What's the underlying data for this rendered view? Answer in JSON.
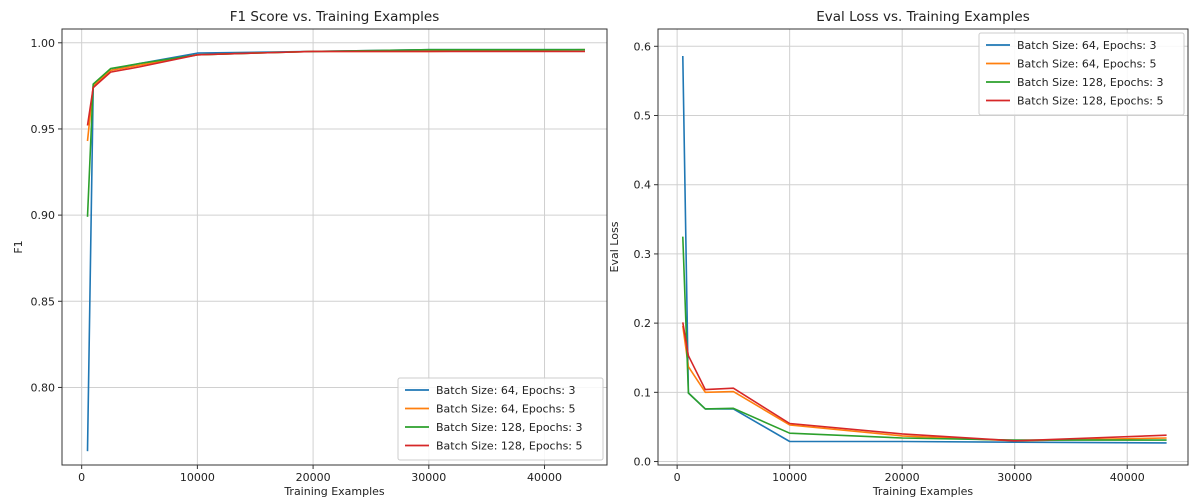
{
  "chart_data": [
    {
      "type": "line",
      "title": "F1 Score vs. Training Examples",
      "xlabel": "Training Examples",
      "ylabel": "F1",
      "xlim": [
        -1700,
        45400
      ],
      "ylim": [
        0.755,
        1.008
      ],
      "xticks": [
        0,
        10000,
        20000,
        30000,
        40000
      ],
      "yticks": [
        0.8,
        0.85,
        0.9,
        0.95,
        1.0
      ],
      "ytick_decimals": 2,
      "grid": true,
      "legend_position": "lower-right",
      "x": [
        500,
        1000,
        2500,
        5000,
        10000,
        20000,
        30000,
        43500
      ],
      "series": [
        {
          "name": "Batch Size: 64, Epochs: 3",
          "color": "#1f77b4",
          "values": [
            0.763,
            0.974,
            0.984,
            0.988,
            0.994,
            0.995,
            0.996,
            0.996
          ]
        },
        {
          "name": "Batch Size: 64, Epochs: 5",
          "color": "#ff7f0e",
          "values": [
            0.943,
            0.975,
            0.984,
            0.987,
            0.993,
            0.995,
            0.995,
            0.996
          ]
        },
        {
          "name": "Batch Size: 128, Epochs: 3",
          "color": "#2ca02c",
          "values": [
            0.899,
            0.976,
            0.985,
            0.988,
            0.993,
            0.995,
            0.996,
            0.996
          ]
        },
        {
          "name": "Batch Size: 128, Epochs: 5",
          "color": "#d62728",
          "values": [
            0.952,
            0.974,
            0.983,
            0.986,
            0.993,
            0.995,
            0.995,
            0.995
          ]
        }
      ]
    },
    {
      "type": "line",
      "title": "Eval Loss vs. Training Examples",
      "xlabel": "Training Examples",
      "ylabel": "Eval Loss",
      "xlim": [
        -1700,
        45400
      ],
      "ylim": [
        -0.005,
        0.625
      ],
      "xticks": [
        0,
        10000,
        20000,
        30000,
        40000
      ],
      "yticks": [
        0.0,
        0.1,
        0.2,
        0.3,
        0.4,
        0.5,
        0.6
      ],
      "ytick_decimals": 1,
      "grid": true,
      "legend_position": "upper-right",
      "x": [
        500,
        1000,
        2500,
        5000,
        10000,
        20000,
        30000,
        43500
      ],
      "series": [
        {
          "name": "Batch Size: 64, Epochs: 3",
          "color": "#1f77b4",
          "values": [
            0.586,
            0.099,
            0.076,
            0.076,
            0.029,
            0.029,
            0.028,
            0.027
          ]
        },
        {
          "name": "Batch Size: 64, Epochs: 5",
          "color": "#ff7f0e",
          "values": [
            0.196,
            0.137,
            0.1,
            0.101,
            0.053,
            0.037,
            0.03,
            0.034
          ]
        },
        {
          "name": "Batch Size: 128, Epochs: 3",
          "color": "#2ca02c",
          "values": [
            0.325,
            0.099,
            0.076,
            0.077,
            0.041,
            0.034,
            0.031,
            0.031
          ]
        },
        {
          "name": "Batch Size: 128, Epochs: 5",
          "color": "#d62728",
          "values": [
            0.201,
            0.153,
            0.104,
            0.106,
            0.055,
            0.04,
            0.03,
            0.038
          ]
        }
      ]
    }
  ]
}
